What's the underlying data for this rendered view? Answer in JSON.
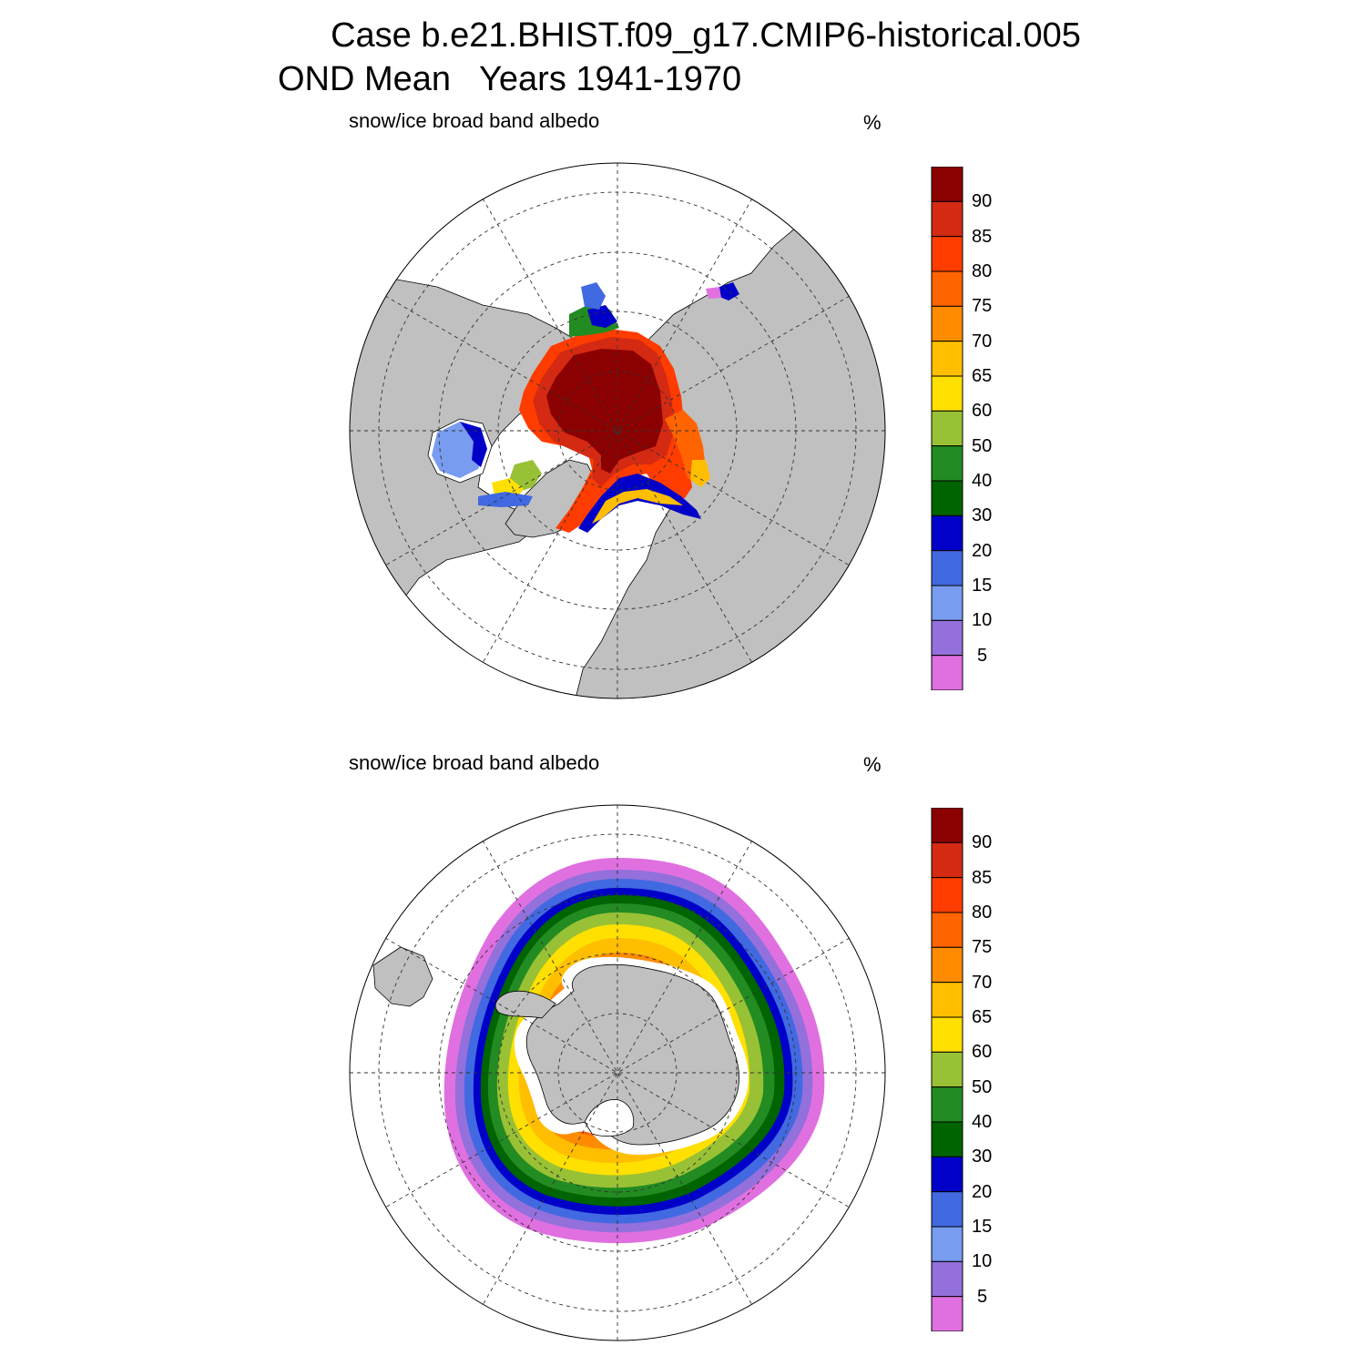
{
  "title": {
    "line1": "Case b.e21.BHIST.f09_g17.CMIP6-historical.005",
    "line2": "OND Mean   Years 1941-1970"
  },
  "panels": [
    {
      "variable": "snow/ice broad band albedo",
      "units": "%",
      "hemisphere": "north"
    },
    {
      "variable": "snow/ice broad band albedo",
      "units": "%",
      "hemisphere": "south"
    }
  ],
  "colorbar": {
    "levels": [
      "90",
      "85",
      "80",
      "75",
      "70",
      "65",
      "60",
      "50",
      "40",
      "30",
      "20",
      "15",
      "10",
      "5"
    ],
    "colors": [
      "#8b0000",
      "#d42a13",
      "#ff3c00",
      "#ff6400",
      "#ff8c00",
      "#ffbf00",
      "#ffe000",
      "#99c135",
      "#228b22",
      "#006400",
      "#0000c8",
      "#4169e1",
      "#789cf0",
      "#9370db",
      "#e070e0"
    ]
  },
  "colors": {
    "land": "#c0c0c0",
    "ocean": "#ffffff",
    "grid": "#333333"
  }
}
